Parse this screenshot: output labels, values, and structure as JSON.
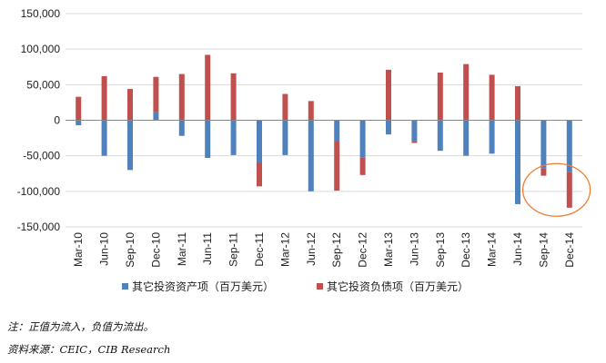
{
  "chart_data": {
    "type": "bar",
    "stacked": true,
    "title": "",
    "xlabel": "",
    "ylabel": "",
    "ylim": [
      -150000,
      150000
    ],
    "yticks": [
      150000,
      100000,
      50000,
      0,
      -50000,
      -100000,
      -150000
    ],
    "ytick_labels": [
      "150,000",
      "100,000",
      "50,000",
      "0",
      "-50,000",
      "-100,000",
      "-150,000"
    ],
    "grid": "horizontal",
    "legend_position": "bottom",
    "categories": [
      "Mar-10",
      "Jun-10",
      "Sep-10",
      "Dec-10",
      "Mar-11",
      "Jun-11",
      "Sep-11",
      "Dec-11",
      "Mar-12",
      "Jun-12",
      "Sep-12",
      "Dec-12",
      "Mar-13",
      "Jun-13",
      "Sep-13",
      "Dec-13",
      "Mar-14",
      "Jun-14",
      "Sep-14",
      "Dec-14"
    ],
    "series": [
      {
        "name": "其它投资资产项（百万美元）",
        "color": "#4f81bd",
        "values": [
          -7000,
          -50000,
          -70000,
          12000,
          -22000,
          -53000,
          -49000,
          -60000,
          -49000,
          -100000,
          -30000,
          -52000,
          -20000,
          -29000,
          -43000,
          -50000,
          -47000,
          -118000,
          -68000,
          -73000
        ]
      },
      {
        "name": "其它投资负债项（百万美元）",
        "color": "#c0504d",
        "values": [
          33000,
          62000,
          44000,
          49000,
          65000,
          92000,
          66000,
          -33000,
          37000,
          27000,
          -69000,
          -25000,
          71000,
          -3000,
          67000,
          79000,
          64000,
          48000,
          -10000,
          -50000
        ]
      }
    ],
    "annotation": {
      "shape": "ellipse",
      "color": "#ed7d31",
      "target": [
        "Sep-14",
        "Dec-14"
      ]
    }
  },
  "notes": {
    "line1": "注：正值为流入，负值为流出。",
    "line2": "资料来源：CEIC，CIB Research"
  }
}
